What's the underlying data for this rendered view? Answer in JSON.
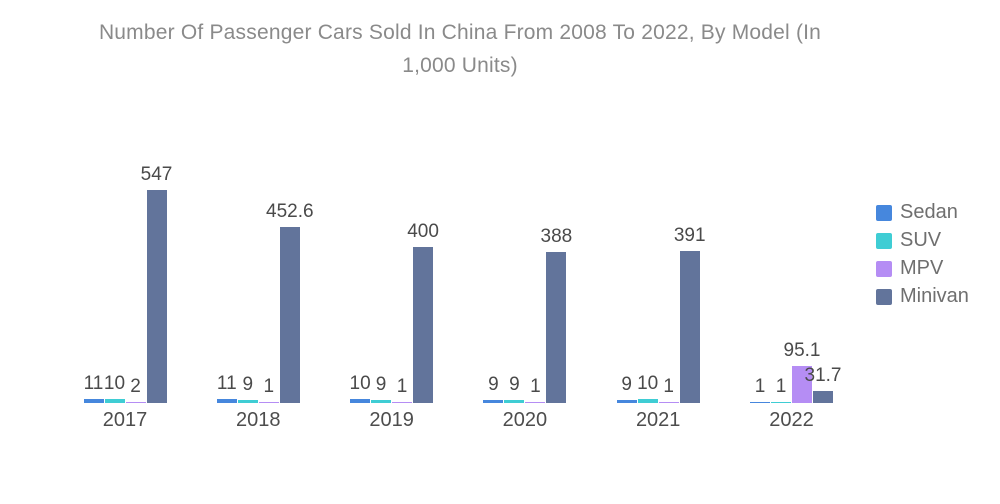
{
  "title_lines": [
    "Number Of Passenger Cars Sold In China From 2008 To 2022, By Model (In",
    "1,000 Units)"
  ],
  "chart_data": {
    "type": "bar",
    "title": "Number Of Passenger Cars Sold In China From 2008 To 2022, By Model (In 1,000 Units)",
    "unit": "1,000 Units",
    "categories": [
      "2017",
      "2018",
      "2019",
      "2020",
      "2021",
      "2022"
    ],
    "series": [
      {
        "name": "Sedan",
        "color": "#4687dd",
        "values": [
          11,
          11,
          10,
          9,
          9,
          1
        ]
      },
      {
        "name": "SUV",
        "color": "#3fcdd4",
        "values": [
          10,
          9,
          9,
          9,
          10,
          1
        ]
      },
      {
        "name": "MPV",
        "color": "#b58df4",
        "values": [
          2,
          1,
          1,
          1,
          1,
          95.1
        ]
      },
      {
        "name": "Minivan",
        "color": "#62749b",
        "values": [
          547,
          452.6,
          400,
          388,
          391,
          31.7
        ]
      }
    ],
    "ylim": [
      0,
      600
    ],
    "grid": false,
    "axes_visible": false,
    "bar_labels": true,
    "legend_position": "right"
  },
  "colors": {
    "background": "#ffffff",
    "title_text": "#8a8a8a",
    "data_label_text": "#4a4a4a",
    "axis_label_text": "#4d4d4d",
    "legend_text": "#6f6f6f"
  }
}
